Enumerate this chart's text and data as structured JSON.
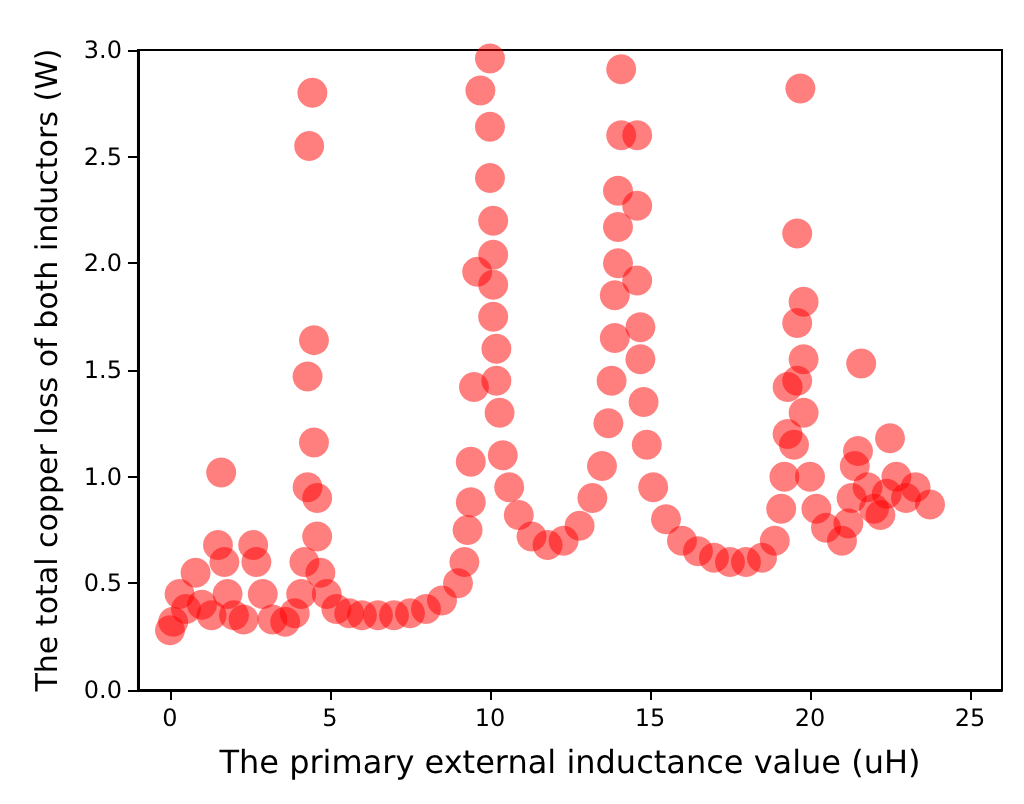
{
  "chart_data": {
    "type": "scatter",
    "xlabel": "The primary external inductance value (uH)",
    "ylabel": "The total copper loss of both inductors (W)",
    "xlim": [
      -1.0,
      26.0
    ],
    "xticks": [
      0,
      5,
      10,
      15,
      20,
      25
    ],
    "ylim": [
      0,
      3.0
    ],
    "yticks": [
      {
        "value": 0,
        "label": "0.0"
      },
      {
        "value": 0.5,
        "label": "0.5"
      },
      {
        "value": 1.0,
        "label": "1.0"
      },
      {
        "value": 1.5,
        "label": "1.5"
      },
      {
        "value": 2.0,
        "label": "2.0"
      },
      {
        "value": 2.5,
        "label": "2.5"
      },
      {
        "value": 3.0,
        "label": "3.0"
      }
    ],
    "grid": false,
    "marker": "circle",
    "series": [
      {
        "color": "#ff0000",
        "x": [
          0,
          0.1,
          0.3,
          0.5,
          0.8,
          1.0,
          1.3,
          1.5,
          1.6,
          1.7,
          1.8,
          2.0,
          2.3,
          2.6,
          2.7,
          2.9,
          3.2,
          3.6,
          3.9,
          4.1,
          4.2,
          4.3,
          4.3,
          4.35,
          4.45,
          4.5,
          4.5,
          4.6,
          4.6,
          4.7,
          4.9,
          5.2,
          5.6,
          6,
          6.5,
          7,
          7.5,
          8,
          8.5,
          9,
          9.2,
          9.3,
          9.4,
          9.4,
          9.5,
          9.6,
          9.7,
          10.0,
          10.0,
          10.0,
          10.1,
          10.1,
          10.1,
          10.1,
          10.2,
          10.2,
          10.3,
          10.4,
          10.6,
          10.9,
          11.3,
          11.8,
          12.3,
          12.8,
          13.2,
          13.5,
          13.7,
          13.8,
          13.9,
          13.9,
          14.0,
          14.0,
          14.0,
          14.1,
          14.1,
          14.6,
          14.6,
          14.6,
          14.7,
          14.7,
          14.8,
          14.9,
          15.1,
          15.5,
          16,
          16.5,
          17,
          17.5,
          18,
          18.5,
          18.9,
          19.1,
          19.2,
          19.3,
          19.3,
          19.5,
          19.6,
          19.6,
          19.6,
          19.7,
          19.8,
          19.8,
          19.8,
          20.0,
          20.2,
          20.5,
          21.0,
          21.2,
          21.3,
          21.4,
          21.5,
          21.6,
          21.8,
          22,
          22.2,
          22.4,
          22.5,
          22.7,
          23,
          23.3,
          23.75
        ],
        "values": [
          0.28,
          0.32,
          0.45,
          0.38,
          0.55,
          0.4,
          0.35,
          0.68,
          1.02,
          0.6,
          0.45,
          0.35,
          0.33,
          0.68,
          0.6,
          0.45,
          0.33,
          0.32,
          0.36,
          0.45,
          0.6,
          0.95,
          1.47,
          2.55,
          2.8,
          1.16,
          1.64,
          0.9,
          0.72,
          0.55,
          0.45,
          0.38,
          0.36,
          0.35,
          0.35,
          0.35,
          0.36,
          0.38,
          0.42,
          0.5,
          0.6,
          0.75,
          0.88,
          1.07,
          1.42,
          1.96,
          2.81,
          2.96,
          2.64,
          2.4,
          2.2,
          2.04,
          1.9,
          1.75,
          1.6,
          1.45,
          1.3,
          1.1,
          0.95,
          0.82,
          0.72,
          0.68,
          0.7,
          0.77,
          0.9,
          1.05,
          1.25,
          1.45,
          1.65,
          1.85,
          2.0,
          2.17,
          2.34,
          2.6,
          2.91,
          2.6,
          2.27,
          1.92,
          1.7,
          1.55,
          1.35,
          1.15,
          0.95,
          0.8,
          0.7,
          0.65,
          0.62,
          0.6,
          0.6,
          0.62,
          0.7,
          0.85,
          1.0,
          1.2,
          1.42,
          1.15,
          1.45,
          1.72,
          2.14,
          2.82,
          1.82,
          1.55,
          1.3,
          1.0,
          0.85,
          0.76,
          0.7,
          0.78,
          0.9,
          1.05,
          1.12,
          1.53,
          0.95,
          0.85,
          0.82,
          0.92,
          1.18,
          1.0,
          0.9,
          0.95,
          0.87
        ]
      }
    ]
  }
}
